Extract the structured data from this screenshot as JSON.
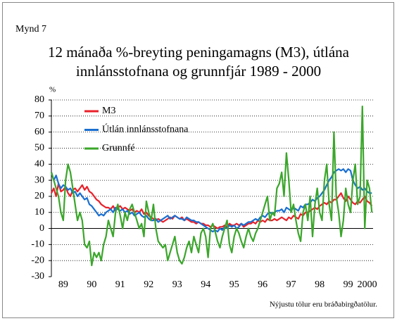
{
  "chart_data": {
    "type": "line",
    "label": "Mynd 7",
    "title": [
      "12 mánaða %-breyting peningamagns (M3), útlána",
      "innlánsstofnana og grunnfjár 1989 - 2000"
    ],
    "y_label": "%",
    "note": "Nýjustu tölur eru bráðabirgðatölur.",
    "ylim": [
      -30,
      80
    ],
    "yticks": [
      -30,
      -20,
      -10,
      0,
      10,
      20,
      30,
      40,
      50,
      60,
      70,
      80
    ],
    "grid": true,
    "legend": "upper-left",
    "categories": [
      null,
      null,
      null,
      null,
      null,
      "89",
      null,
      null,
      null,
      null,
      null,
      null,
      null,
      null,
      null,
      null,
      null,
      "90",
      null,
      null,
      null,
      null,
      null,
      null,
      null,
      null,
      null,
      null,
      null,
      "91",
      null,
      null,
      null,
      null,
      null,
      null,
      null,
      null,
      null,
      null,
      null,
      "92",
      null,
      null,
      null,
      null,
      null,
      null,
      null,
      null,
      null,
      null,
      null,
      "93",
      null,
      null,
      null,
      null,
      null,
      null,
      null,
      null,
      null,
      null,
      null,
      "94",
      null,
      null,
      null,
      null,
      null,
      null,
      null,
      null,
      null,
      null,
      null,
      "95",
      null,
      null,
      null,
      null,
      null,
      null,
      null,
      null,
      null,
      null,
      null,
      "96",
      null,
      null,
      null,
      null,
      null,
      null,
      null,
      null,
      null,
      null,
      null,
      "97",
      null,
      null,
      null,
      null,
      null,
      null,
      null,
      null,
      null,
      null,
      null,
      "98",
      null,
      null,
      null,
      null,
      null,
      null,
      null,
      null,
      null,
      null,
      null,
      "99",
      null,
      null,
      null,
      null,
      null,
      null,
      null,
      "2000",
      null,
      null
    ],
    "series": [
      {
        "name": "M3",
        "color": "#e8202a",
        "values": [
          22,
          25,
          20,
          28,
          23,
          24,
          26,
          22,
          20,
          24,
          25,
          23,
          25,
          27,
          24,
          26,
          23,
          22,
          20,
          18,
          17,
          15,
          14,
          13,
          13,
          12,
          14,
          11,
          13,
          14,
          12,
          13,
          12,
          11,
          12,
          10,
          11,
          10,
          12,
          9,
          10,
          8,
          7,
          6,
          5,
          6,
          5,
          4,
          5,
          6,
          7,
          6,
          8,
          7,
          6,
          7,
          5,
          6,
          5,
          4,
          4,
          3,
          4,
          3,
          3,
          2,
          2,
          1,
          2,
          1,
          0,
          1,
          1,
          2,
          1,
          3,
          2,
          2,
          3,
          2,
          3,
          1,
          2,
          3,
          3,
          4,
          3,
          5,
          4,
          5,
          4,
          6,
          5,
          5,
          6,
          5,
          6,
          7,
          6,
          5,
          7,
          6,
          8,
          7,
          6,
          9,
          8,
          10,
          10,
          11,
          12,
          13,
          12,
          14,
          15,
          16,
          15,
          17,
          16,
          18,
          18,
          20,
          22,
          19,
          17,
          20,
          18,
          16,
          15,
          17,
          16,
          18,
          20,
          17,
          16,
          14
        ]
      },
      {
        "name": "Útlán innlánsstofnana",
        "color": "#1a6fd0",
        "values": [
          35,
          30,
          33,
          28,
          25,
          27,
          26,
          24,
          25,
          22,
          23,
          20,
          22,
          20,
          18,
          19,
          15,
          14,
          12,
          10,
          8,
          9,
          8,
          10,
          11,
          12,
          10,
          13,
          12,
          11,
          12,
          10,
          11,
          9,
          10,
          8,
          9,
          10,
          8,
          7,
          8,
          6,
          5,
          5,
          6,
          4,
          5,
          6,
          7,
          8,
          6,
          7,
          8,
          7,
          6,
          6,
          5,
          7,
          6,
          5,
          5,
          4,
          4,
          3,
          2,
          1,
          0,
          -1,
          -2,
          -1,
          -2,
          0,
          -1,
          1,
          0,
          2,
          1,
          2,
          0,
          1,
          3,
          2,
          3,
          4,
          4,
          5,
          6,
          5,
          7,
          8,
          7,
          9,
          10,
          9,
          10,
          11,
          11,
          12,
          10,
          13,
          12,
          11,
          13,
          12,
          11,
          14,
          13,
          15,
          15,
          16,
          18,
          17,
          19,
          20,
          22,
          24,
          27,
          30,
          32,
          35,
          36,
          37,
          36,
          37,
          35,
          37,
          36,
          30,
          27,
          25,
          26,
          24,
          25,
          23,
          22,
          22
        ]
      },
      {
        "name": "Grunnfé",
        "color": "#3aa62a",
        "values": [
          35,
          30,
          25,
          20,
          10,
          5,
          30,
          40,
          35,
          25,
          15,
          5,
          10,
          5,
          -10,
          -12,
          -8,
          -23,
          -15,
          -18,
          -15,
          -20,
          -10,
          -5,
          5,
          0,
          -5,
          10,
          15,
          8,
          0,
          10,
          5,
          12,
          15,
          10,
          5,
          0,
          3,
          -5,
          17,
          10,
          5,
          15,
          0,
          -8,
          -10,
          -12,
          -10,
          -20,
          -15,
          -10,
          -5,
          -15,
          -20,
          -22,
          -18,
          -12,
          -8,
          -15,
          -5,
          -10,
          -15,
          -3,
          0,
          -5,
          -18,
          0,
          3,
          -2,
          -8,
          -12,
          -5,
          0,
          5,
          -10,
          -15,
          -5,
          0,
          -3,
          -8,
          -12,
          -5,
          0,
          -5,
          -8,
          -3,
          0,
          5,
          10,
          15,
          20,
          5,
          10,
          8,
          25,
          28,
          35,
          20,
          47,
          30,
          10,
          15,
          5,
          -3,
          -8,
          10,
          15,
          5,
          20,
          -5,
          15,
          25,
          10,
          5,
          30,
          40,
          15,
          5,
          60,
          20,
          10,
          -5,
          5,
          25,
          15,
          10,
          30,
          40,
          15,
          20,
          76,
          0,
          30,
          25,
          10
        ]
      }
    ]
  }
}
